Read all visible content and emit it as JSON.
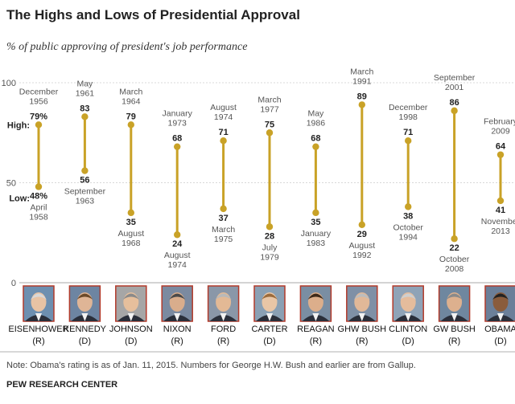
{
  "chart_data": {
    "type": "range",
    "title": "The Highs and Lows of Presidential Approval",
    "subtitle": "% of public approving of president's job performance",
    "ylim": [
      0,
      100
    ],
    "yticks": [
      0,
      50,
      100
    ],
    "high_label": "High:",
    "low_label": "Low:",
    "colors": {
      "bar": "#c9a227",
      "grid": "#cccccc",
      "portrait_border": "#b23a2a"
    },
    "presidents": [
      {
        "name": "EISENHOWER",
        "party": "(R)",
        "high": 79,
        "high_label": "79%",
        "high_date": [
          "December",
          "1956"
        ],
        "low": 48,
        "low_label": "48%",
        "low_date": [
          "April",
          "1958"
        ]
      },
      {
        "name": "KENNEDY",
        "party": "(D)",
        "high": 83,
        "high_label": "83",
        "high_date": [
          "May",
          "1961"
        ],
        "low": 56,
        "low_label": "56",
        "low_date": [
          "September",
          "1963"
        ]
      },
      {
        "name": "JOHNSON",
        "party": "(D)",
        "high": 79,
        "high_label": "79",
        "high_date": [
          "March",
          "1964"
        ],
        "low": 35,
        "low_label": "35",
        "low_date": [
          "August",
          "1968"
        ]
      },
      {
        "name": "NIXON",
        "party": "(R)",
        "high": 68,
        "high_label": "68",
        "high_date": [
          "January",
          "1973"
        ],
        "low": 24,
        "low_label": "24",
        "low_date": [
          "August",
          "1974"
        ]
      },
      {
        "name": "FORD",
        "party": "(R)",
        "high": 71,
        "high_label": "71",
        "high_date": [
          "August",
          "1974"
        ],
        "low": 37,
        "low_label": "37",
        "low_date": [
          "March",
          "1975"
        ]
      },
      {
        "name": "CARTER",
        "party": "(D)",
        "high": 75,
        "high_label": "75",
        "high_date": [
          "March",
          "1977"
        ],
        "low": 28,
        "low_label": "28",
        "low_date": [
          "July",
          "1979"
        ]
      },
      {
        "name": "REAGAN",
        "party": "(R)",
        "high": 68,
        "high_label": "68",
        "high_date": [
          "May",
          "1986"
        ],
        "low": 35,
        "low_label": "35",
        "low_date": [
          "January",
          "1983"
        ]
      },
      {
        "name": "GHW BUSH",
        "party": "(R)",
        "high": 89,
        "high_label": "89",
        "high_date": [
          "March",
          "1991"
        ],
        "low": 29,
        "low_label": "29",
        "low_date": [
          "August",
          "1992"
        ]
      },
      {
        "name": "CLINTON",
        "party": "(D)",
        "high": 71,
        "high_label": "71",
        "high_date": [
          "December",
          "1998"
        ],
        "low": 38,
        "low_label": "38",
        "low_date": [
          "October",
          "1994"
        ]
      },
      {
        "name": "GW BUSH",
        "party": "(R)",
        "high": 86,
        "high_label": "86",
        "high_date": [
          "September",
          "2001"
        ],
        "low": 22,
        "low_label": "22",
        "low_date": [
          "October",
          "2008"
        ]
      },
      {
        "name": "OBAMA",
        "party": "(D)",
        "high": 64,
        "high_label": "64",
        "high_date": [
          "February",
          "2009"
        ],
        "low": 41,
        "low_label": "41",
        "low_date": [
          "November",
          "2013"
        ]
      }
    ]
  },
  "footer": {
    "note": "Note: Obama's rating is as of Jan. 11, 2015. Numbers for George H.W. Bush and earlier are from Gallup.",
    "source": "PEW RESEARCH CENTER"
  }
}
